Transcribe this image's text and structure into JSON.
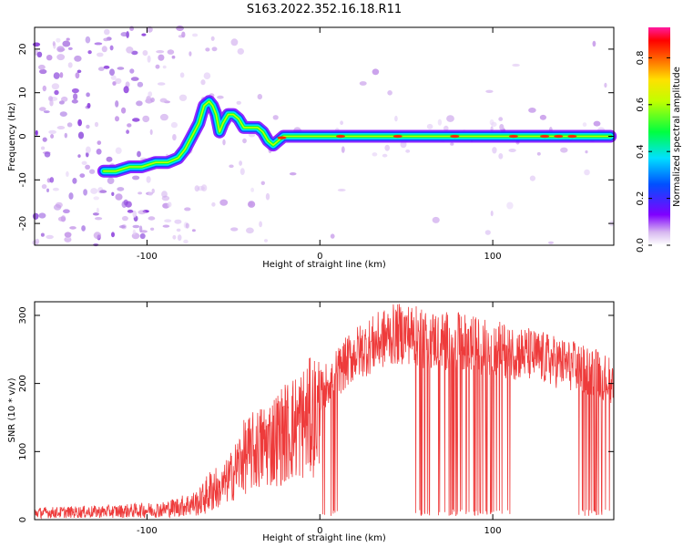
{
  "title": "S163.2022.352.16.18.R11",
  "chart_data": [
    {
      "type": "heatmap",
      "xlabel": "Height of straight line (km)",
      "ylabel": "Frequency (Hz)",
      "xlim": [
        -165,
        170
      ],
      "ylim": [
        -25,
        25
      ],
      "xticks": [
        -100,
        0,
        100
      ],
      "yticks": [
        -20,
        -10,
        0,
        10,
        20
      ],
      "ridge": {
        "x": [
          -125,
          -118,
          -110,
          -103,
          -95,
          -88,
          -82,
          -78,
          -74,
          -70,
          -67,
          -64,
          -62,
          -60,
          -58,
          -56,
          -53,
          -50,
          -47,
          -44,
          -40,
          -36,
          -33,
          -30,
          -27,
          -24,
          -21,
          -18,
          -15,
          -10,
          -5,
          0,
          20,
          40,
          60,
          80,
          100,
          120,
          140,
          160,
          168
        ],
        "y": [
          -8,
          -8,
          -7,
          -7,
          -6,
          -6,
          -5,
          -3,
          0,
          3,
          7,
          8,
          7,
          5,
          1,
          3,
          5,
          5,
          4,
          2,
          2,
          2,
          1,
          -1,
          -2,
          -1,
          0,
          0,
          0,
          0,
          0,
          0,
          0,
          0,
          0,
          0,
          0,
          0,
          0,
          0,
          0
        ]
      },
      "colorbar": {
        "label": "Normalized spectral amplitude",
        "ticks": [
          "0.0",
          "0.2",
          "0.4",
          "0.6",
          "0.8"
        ],
        "range": [
          0,
          0.93
        ]
      }
    },
    {
      "type": "line",
      "xlabel": "Height of straight line (km)",
      "ylabel": "SNR (10 * v/v)",
      "xlim": [
        -165,
        170
      ],
      "ylim": [
        0,
        320
      ],
      "xticks": [
        -100,
        0,
        100
      ],
      "yticks": [
        0,
        100,
        200,
        300
      ],
      "color": "#ee3b3b",
      "envelope": {
        "x": [
          -165,
          -120,
          -90,
          -70,
          -60,
          -50,
          -45,
          -40,
          -35,
          -20,
          -10,
          0,
          10,
          20,
          30,
          40,
          50,
          60,
          80,
          100,
          120,
          140,
          160,
          170
        ],
        "y": [
          10,
          12,
          15,
          25,
          50,
          90,
          120,
          130,
          140,
          170,
          190,
          210,
          240,
          270,
          285,
          300,
          305,
          295,
          290,
          280,
          270,
          255,
          240,
          225
        ]
      },
      "dropout_regions": [
        [
          0,
          12
        ],
        [
          55,
          110
        ],
        [
          148,
          168
        ]
      ]
    }
  ]
}
